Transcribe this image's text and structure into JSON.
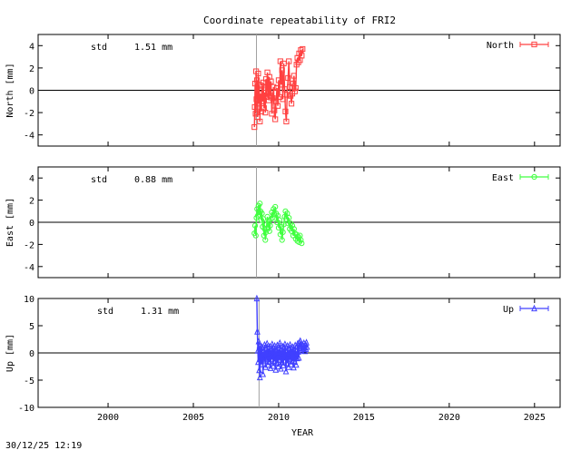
{
  "title": "Coordinate repeatability of FRI2",
  "xlabel": "YEAR",
  "timestamp": "30/12/25 12:19",
  "std_label": "std",
  "chart_data": [
    {
      "type": "scatter",
      "name": "North",
      "ylabel": "North [mm]",
      "std": "1.51 mm",
      "color": "#ff4040",
      "marker": "square",
      "xlim": [
        1995.9,
        2026.5
      ],
      "ylim": [
        -5,
        5
      ],
      "yticks": [
        -4,
        -2,
        0,
        2,
        4
      ],
      "vline": 2008.7,
      "points": [
        [
          2008.58,
          -3.3
        ],
        [
          2008.6,
          -1.5
        ],
        [
          2008.62,
          0.6
        ],
        [
          2008.65,
          -2.1
        ],
        [
          2008.68,
          1.7
        ],
        [
          2008.7,
          -0.8
        ],
        [
          2008.73,
          0.9
        ],
        [
          2008.76,
          -2.4
        ],
        [
          2008.8,
          1.5
        ],
        [
          2008.83,
          -1.2
        ],
        [
          2008.86,
          0.5
        ],
        [
          2008.9,
          -2.8
        ],
        [
          2008.94,
          -0.3
        ],
        [
          2008.98,
          -1.9
        ],
        [
          2009.02,
          0.4
        ],
        [
          2009.06,
          -1.0
        ],
        [
          2009.1,
          0.7
        ],
        [
          2009.14,
          -1.6
        ],
        [
          2009.18,
          -0.2
        ],
        [
          2009.22,
          -2.0
        ],
        [
          2009.26,
          1.0
        ],
        [
          2009.3,
          -0.6
        ],
        [
          2009.34,
          1.6
        ],
        [
          2009.38,
          0.2
        ],
        [
          2009.42,
          -0.9
        ],
        [
          2009.46,
          1.2
        ],
        [
          2009.5,
          -0.5
        ],
        [
          2009.55,
          0.8
        ],
        [
          2009.6,
          -2.1
        ],
        [
          2009.65,
          -0.7
        ],
        [
          2009.7,
          0.3
        ],
        [
          2009.75,
          -1.8
        ],
        [
          2009.8,
          -2.6
        ],
        [
          2009.85,
          -1.0
        ],
        [
          2009.9,
          0.2
        ],
        [
          2009.95,
          -1.4
        ],
        [
          2010.0,
          0.9
        ],
        [
          2010.05,
          -0.6
        ],
        [
          2010.1,
          2.6
        ],
        [
          2010.15,
          0.5
        ],
        [
          2010.2,
          1.8
        ],
        [
          2010.25,
          -0.8
        ],
        [
          2010.3,
          2.4
        ],
        [
          2010.35,
          0.1
        ],
        [
          2010.4,
          -1.9
        ],
        [
          2010.45,
          -2.8
        ],
        [
          2010.5,
          -0.4
        ],
        [
          2010.55,
          1.1
        ],
        [
          2010.6,
          2.6
        ],
        [
          2010.65,
          0.3
        ],
        [
          2010.7,
          -0.5
        ],
        [
          2010.75,
          -1.2
        ],
        [
          2010.8,
          -0.3
        ],
        [
          2010.85,
          0.6
        ],
        [
          2010.9,
          1.3
        ],
        [
          2010.95,
          -0.1
        ],
        [
          2011.0,
          0.2
        ],
        [
          2011.05,
          2.3
        ],
        [
          2011.1,
          2.9
        ],
        [
          2011.15,
          2.5
        ],
        [
          2011.2,
          3.3
        ],
        [
          2011.25,
          2.7
        ],
        [
          2011.3,
          3.6
        ],
        [
          2011.35,
          3.1
        ],
        [
          2011.4,
          3.7
        ]
      ]
    },
    {
      "type": "scatter",
      "name": "East",
      "ylabel": "East [mm]",
      "std": "0.88 mm",
      "color": "#40ff40",
      "marker": "circle",
      "xlim": [
        1995.9,
        2026.5
      ],
      "ylim": [
        -5,
        5
      ],
      "yticks": [
        -4,
        -2,
        0,
        2,
        4
      ],
      "vline": 2008.7,
      "points": [
        [
          2008.58,
          -1.0
        ],
        [
          2008.62,
          -0.3
        ],
        [
          2008.66,
          -1.2
        ],
        [
          2008.7,
          0.4
        ],
        [
          2008.74,
          1.2
        ],
        [
          2008.78,
          0.6
        ],
        [
          2008.82,
          1.5
        ],
        [
          2008.86,
          0.9
        ],
        [
          2008.9,
          1.7
        ],
        [
          2008.94,
          1.0
        ],
        [
          2008.98,
          0.2
        ],
        [
          2009.02,
          0.8
        ],
        [
          2009.06,
          -0.4
        ],
        [
          2009.1,
          0.3
        ],
        [
          2009.14,
          -1.2
        ],
        [
          2009.18,
          -0.6
        ],
        [
          2009.22,
          -1.6
        ],
        [
          2009.26,
          -0.9
        ],
        [
          2009.3,
          -0.2
        ],
        [
          2009.34,
          0.5
        ],
        [
          2009.38,
          -0.5
        ],
        [
          2009.42,
          0.1
        ],
        [
          2009.46,
          -0.8
        ],
        [
          2009.5,
          -0.3
        ],
        [
          2009.55,
          0.3
        ],
        [
          2009.6,
          0.9
        ],
        [
          2009.65,
          0.4
        ],
        [
          2009.7,
          1.2
        ],
        [
          2009.75,
          0.7
        ],
        [
          2009.8,
          1.4
        ],
        [
          2009.85,
          0.8
        ],
        [
          2009.9,
          0.0
        ],
        [
          2009.95,
          0.6
        ],
        [
          2010.0,
          -0.5
        ],
        [
          2010.05,
          0.2
        ],
        [
          2010.1,
          -1.1
        ],
        [
          2010.15,
          -0.4
        ],
        [
          2010.2,
          -1.6
        ],
        [
          2010.25,
          -0.9
        ],
        [
          2010.3,
          -0.2
        ],
        [
          2010.35,
          0.5
        ],
        [
          2010.4,
          1.0
        ],
        [
          2010.45,
          0.3
        ],
        [
          2010.5,
          0.8
        ],
        [
          2010.55,
          -0.1
        ],
        [
          2010.6,
          0.4
        ],
        [
          2010.65,
          -0.6
        ],
        [
          2010.7,
          -0.1
        ],
        [
          2010.75,
          -0.8
        ],
        [
          2010.8,
          -0.3
        ],
        [
          2010.85,
          -1.2
        ],
        [
          2010.9,
          -0.6
        ],
        [
          2010.95,
          -1.0
        ],
        [
          2011.0,
          -1.5
        ],
        [
          2011.05,
          -1.1
        ],
        [
          2011.1,
          -1.7
        ],
        [
          2011.15,
          -1.3
        ],
        [
          2011.2,
          -1.8
        ],
        [
          2011.25,
          -1.2
        ],
        [
          2011.3,
          -1.6
        ],
        [
          2011.35,
          -1.9
        ]
      ]
    },
    {
      "type": "scatter",
      "name": "Up",
      "ylabel": "Up [mm]",
      "std": "1.31 mm",
      "color": "#4040ff",
      "marker": "triangle",
      "xlim": [
        1995.9,
        2026.5
      ],
      "ylim": [
        -10,
        10
      ],
      "yticks": [
        -10,
        -5,
        0,
        5,
        10
      ],
      "vline": 2008.85,
      "points": [
        [
          2008.72,
          10.0
        ],
        [
          2008.75,
          3.9
        ],
        [
          2008.78,
          0.4
        ],
        [
          2008.8,
          -1.7
        ],
        [
          2008.83,
          2.1
        ],
        [
          2008.86,
          -3.2
        ],
        [
          2008.88,
          1.3
        ],
        [
          2008.9,
          -4.5
        ],
        [
          2008.93,
          -0.8
        ],
        [
          2008.96,
          0.9
        ],
        [
          2008.99,
          -2.1
        ],
        [
          2009.02,
          1.1
        ],
        [
          2009.05,
          -0.6
        ],
        [
          2009.08,
          -3.9
        ],
        [
          2009.11,
          0.2
        ],
        [
          2009.14,
          -1.4
        ],
        [
          2009.17,
          1.5
        ],
        [
          2009.2,
          -0.9
        ],
        [
          2009.23,
          -2.6
        ],
        [
          2009.26,
          0.6
        ],
        [
          2009.29,
          -1.1
        ],
        [
          2009.32,
          1.7
        ],
        [
          2009.35,
          -0.4
        ],
        [
          2009.38,
          -2.2
        ],
        [
          2009.41,
          0.8
        ],
        [
          2009.44,
          -1.6
        ],
        [
          2009.47,
          1.2
        ],
        [
          2009.5,
          -0.3
        ],
        [
          2009.53,
          -2.8
        ],
        [
          2009.56,
          0.5
        ],
        [
          2009.59,
          -1.2
        ],
        [
          2009.62,
          1.6
        ],
        [
          2009.65,
          -0.7
        ],
        [
          2009.68,
          -2.4
        ],
        [
          2009.71,
          0.9
        ],
        [
          2009.74,
          -1.5
        ],
        [
          2009.77,
          1.3
        ],
        [
          2009.8,
          -0.2
        ],
        [
          2009.83,
          -3.1
        ],
        [
          2009.86,
          0.3
        ],
        [
          2009.89,
          -1.8
        ],
        [
          2009.92,
          1.4
        ],
        [
          2009.95,
          -0.6
        ],
        [
          2009.98,
          -2.5
        ],
        [
          2010.01,
          0.7
        ],
        [
          2010.04,
          -1.3
        ],
        [
          2010.07,
          1.8
        ],
        [
          2010.1,
          -0.5
        ],
        [
          2010.13,
          -2.9
        ],
        [
          2010.16,
          0.4
        ],
        [
          2010.19,
          -1.7
        ],
        [
          2010.22,
          1.2
        ],
        [
          2010.25,
          -0.8
        ],
        [
          2010.28,
          -2.3
        ],
        [
          2010.31,
          0.9
        ],
        [
          2010.34,
          -1.4
        ],
        [
          2010.37,
          1.6
        ],
        [
          2010.4,
          -0.3
        ],
        [
          2010.43,
          -3.4
        ],
        [
          2010.46,
          0.2
        ],
        [
          2010.49,
          -1.9
        ],
        [
          2010.52,
          1.3
        ],
        [
          2010.55,
          -0.6
        ],
        [
          2010.58,
          -2.6
        ],
        [
          2010.61,
          0.6
        ],
        [
          2010.64,
          -1.2
        ],
        [
          2010.67,
          1.5
        ],
        [
          2010.7,
          -0.9
        ],
        [
          2010.73,
          -2.1
        ],
        [
          2010.76,
          0.8
        ],
        [
          2010.79,
          -1.5
        ],
        [
          2010.82,
          1.1
        ],
        [
          2010.85,
          -0.4
        ],
        [
          2010.88,
          -2.7
        ],
        [
          2010.91,
          0.5
        ],
        [
          2010.94,
          -1.6
        ],
        [
          2010.97,
          1.4
        ],
        [
          2011.0,
          -0.7
        ],
        [
          2011.03,
          -2.2
        ],
        [
          2011.06,
          0.3
        ],
        [
          2011.09,
          -1.0
        ],
        [
          2011.12,
          1.7
        ],
        [
          2011.15,
          0.2
        ],
        [
          2011.18,
          -0.9
        ],
        [
          2011.21,
          1.9
        ],
        [
          2011.24,
          0.9
        ],
        [
          2011.27,
          2.2
        ],
        [
          2011.3,
          1.2
        ],
        [
          2011.33,
          0.4
        ],
        [
          2011.36,
          1.6
        ],
        [
          2011.39,
          0.8
        ],
        [
          2011.42,
          1.4
        ],
        [
          2011.45,
          0.6
        ],
        [
          2011.48,
          1.8
        ],
        [
          2011.51,
          1.0
        ],
        [
          2011.54,
          0.3
        ],
        [
          2011.57,
          1.5
        ],
        [
          2011.6,
          0.7
        ],
        [
          2011.63,
          1.9
        ],
        [
          2011.66,
          1.1
        ]
      ]
    }
  ],
  "xticks": [
    2000,
    2005,
    2010,
    2015,
    2020,
    2025
  ]
}
